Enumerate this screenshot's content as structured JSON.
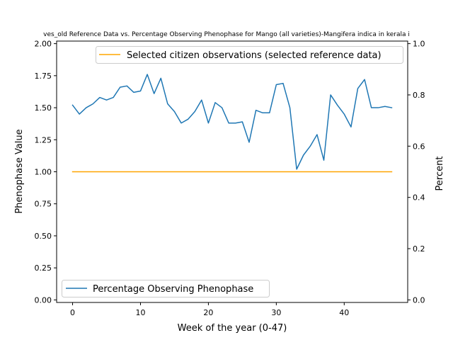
{
  "chart_data": {
    "type": "line",
    "title": "ves_old Reference Data vs. Percentage Observing Phenophase for Mango (all varieties)-Mangifera indica in kerala i",
    "xlabel": "Week of the year (0-47)",
    "ylabel_left": "Phenophase Value",
    "ylabel_right": "Percent",
    "xlim": [
      -2.35,
      49.35
    ],
    "ylim_left": [
      -0.02,
      2.02
    ],
    "ylim_right": [
      -0.01,
      1.01
    ],
    "x_ticks": [
      0,
      10,
      20,
      30,
      40
    ],
    "y_ticks_left": [
      0.0,
      0.25,
      0.5,
      0.75,
      1.0,
      1.25,
      1.5,
      1.75,
      2.0
    ],
    "y_ticks_right": [
      0.0,
      0.2,
      0.4,
      0.6,
      0.8,
      1.0
    ],
    "x_tick_labels": [
      "0",
      "10",
      "20",
      "30",
      "40"
    ],
    "y_tick_labels_left": [
      "0.00",
      "0.25",
      "0.50",
      "0.75",
      "1.00",
      "1.25",
      "1.50",
      "1.75",
      "2.00"
    ],
    "y_tick_labels_right": [
      "0.0",
      "0.2",
      "0.4",
      "0.6",
      "0.8",
      "1.0"
    ],
    "grid": false,
    "series": [
      {
        "name": "Percentage Observing Phenophase",
        "axis": "left",
        "color": "#1f77b4",
        "x": [
          0,
          1,
          2,
          3,
          4,
          5,
          6,
          7,
          8,
          9,
          10,
          11,
          12,
          13,
          14,
          15,
          16,
          17,
          18,
          19,
          20,
          21,
          22,
          23,
          24,
          25,
          26,
          27,
          28,
          29,
          30,
          31,
          32,
          33,
          34,
          35,
          36,
          37,
          38,
          39,
          40,
          41,
          42,
          43,
          44,
          45,
          46,
          47
        ],
        "values": [
          1.52,
          1.45,
          1.5,
          1.53,
          1.58,
          1.56,
          1.58,
          1.66,
          1.67,
          1.62,
          1.63,
          1.76,
          1.61,
          1.73,
          1.53,
          1.47,
          1.38,
          1.41,
          1.47,
          1.56,
          1.38,
          1.54,
          1.5,
          1.38,
          1.38,
          1.39,
          1.23,
          1.48,
          1.46,
          1.46,
          1.68,
          1.69,
          1.5,
          1.02,
          1.13,
          1.2,
          1.29,
          1.09,
          1.6,
          1.52,
          1.45,
          1.35,
          1.65,
          1.72,
          1.5,
          1.5,
          1.51,
          1.5
        ]
      },
      {
        "name": "Selected citizen observations (selected reference data)",
        "axis": "left",
        "color": "#ffa500",
        "x": [
          0,
          47
        ],
        "values": [
          1.0,
          1.0
        ]
      }
    ],
    "legend": [
      {
        "position": "lower-left",
        "series_index": 0,
        "label": "Percentage Observing Phenophase"
      },
      {
        "position": "upper-right",
        "series_index": 1,
        "label": "Selected citizen observations (selected reference data)"
      }
    ]
  }
}
